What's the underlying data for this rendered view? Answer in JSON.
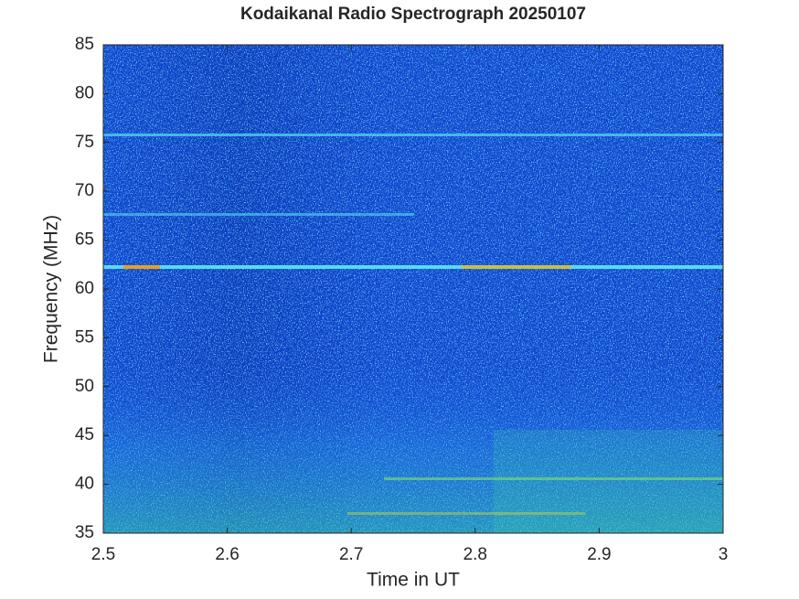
{
  "chart_data": {
    "type": "heatmap",
    "title": "Kodaikanal Radio Spectrograph  20250107",
    "x_label": "Time in UT",
    "y_label": "Frequency (MHz)",
    "xlim": [
      2.5,
      3
    ],
    "xticks": [
      2.5,
      2.6,
      2.7,
      2.8,
      2.9,
      3
    ],
    "ylim": [
      35,
      85
    ],
    "yticks": [
      35,
      40,
      45,
      50,
      55,
      60,
      65,
      70,
      75,
      80,
      85
    ]
  }
}
